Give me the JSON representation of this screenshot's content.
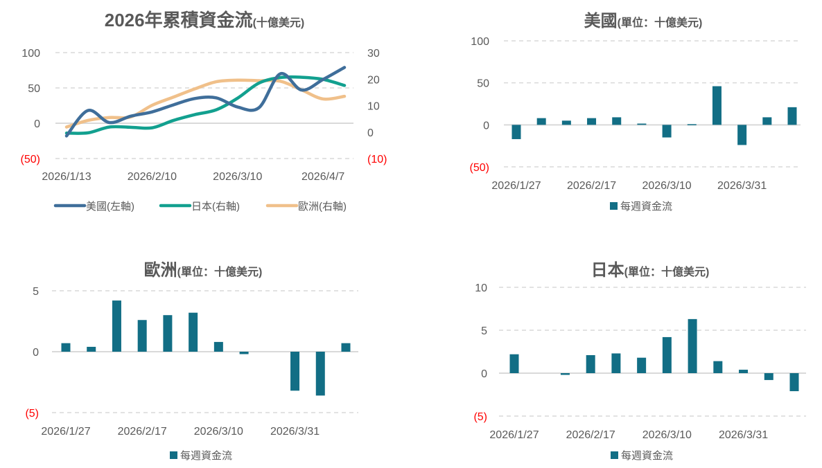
{
  "colors": {
    "us": "#3f6e9a",
    "japan": "#12a08f",
    "europe": "#f0c08a",
    "bar": "#126e85",
    "grid": "#d9d9d9",
    "text": "#595959",
    "negative": "#ff0000"
  },
  "chart_data": [
    {
      "type": "line",
      "title_main": "2026年累積資金流",
      "title_unit": "(十億美元)",
      "x": [
        "2026/1/13",
        "2026/1/20",
        "2026/1/27",
        "2026/2/3",
        "2026/2/10",
        "2026/2/17",
        "2026/2/24",
        "2026/3/3",
        "2026/3/10",
        "2026/3/17",
        "2026/3/24",
        "2026/3/31",
        "2026/4/7",
        "2026/4/14"
      ],
      "x_tick_labels": [
        "2026/1/13",
        "2026/2/10",
        "2026/3/10",
        "2026/4/7"
      ],
      "y_left": {
        "ylim": [
          -50,
          100
        ],
        "ticks": [
          "(50)",
          "0",
          "50",
          "100"
        ]
      },
      "y_right": {
        "ylim": [
          -10,
          30
        ],
        "ticks": [
          "(10)",
          "0",
          "10",
          "20",
          "30"
        ]
      },
      "series": [
        {
          "name": "美國(左軸)",
          "axis": "left",
          "values": [
            -18,
            18,
            1,
            10,
            16,
            26,
            35,
            36,
            23,
            22,
            70,
            47,
            62,
            79
          ]
        },
        {
          "name": "日本(右軸)",
          "axis": "right",
          "values": [
            -0.4,
            -0.3,
            1.9,
            1.8,
            1.6,
            4.4,
            6.6,
            8.4,
            12.8,
            18.5,
            20.6,
            20.7,
            19.9,
            17.6
          ]
        },
        {
          "name": "歐洲(右軸)",
          "axis": "right",
          "values": [
            1.9,
            4.4,
            5.5,
            5.7,
            10.1,
            13.2,
            16.3,
            19.0,
            19.6,
            19.4,
            19.2,
            15.9,
            12.5,
            13.5
          ]
        }
      ],
      "grid": true,
      "legend": "bottom"
    },
    {
      "type": "bar",
      "title_main": "美國",
      "title_unit": "(單位：十億美元)",
      "categories": [
        "2026/1/27",
        "2026/2/3",
        "2026/2/10",
        "2026/2/17",
        "2026/2/24",
        "2026/3/3",
        "2026/3/10",
        "2026/3/17",
        "2026/3/24",
        "2026/3/31",
        "2026/4/7",
        "2026/4/14"
      ],
      "x_tick_labels": [
        "2026/1/27",
        "2026/2/17",
        "2026/3/10",
        "2026/3/31"
      ],
      "values": [
        -17,
        8,
        5,
        8,
        9,
        1.5,
        -15,
        0.8,
        46,
        -24,
        9,
        21
      ],
      "ylim": [
        -50,
        100
      ],
      "ticks": [
        "(50)",
        "0",
        "50",
        "100"
      ],
      "legend_label": "每週資金流",
      "grid": true,
      "legend": "bottom"
    },
    {
      "type": "bar",
      "title_main": "歐洲",
      "title_unit": "(單位：十億美元)",
      "categories": [
        "2026/1/27",
        "2026/2/3",
        "2026/2/10",
        "2026/2/17",
        "2026/2/24",
        "2026/3/3",
        "2026/3/10",
        "2026/3/17",
        "2026/3/24",
        "2026/3/31",
        "2026/4/7",
        "2026/4/14"
      ],
      "x_tick_labels": [
        "2026/1/27",
        "2026/2/17",
        "2026/3/10",
        "2026/3/31"
      ],
      "values": [
        0.7,
        0.4,
        4.2,
        2.6,
        3.0,
        3.2,
        0.8,
        -0.2,
        0,
        -3.2,
        -3.6,
        0.7
      ],
      "ylim": [
        -5,
        5
      ],
      "ticks": [
        "(5)",
        "0",
        "5"
      ],
      "legend_label": "每週資金流",
      "grid": true,
      "legend": "bottom"
    },
    {
      "type": "bar",
      "title_main": "日本",
      "title_unit": "(單位：十億美元)",
      "categories": [
        "2026/1/27",
        "2026/2/3",
        "2026/2/10",
        "2026/2/17",
        "2026/2/24",
        "2026/3/3",
        "2026/3/10",
        "2026/3/17",
        "2026/3/24",
        "2026/3/31",
        "2026/4/7",
        "2026/4/14"
      ],
      "x_tick_labels": [
        "2026/1/27",
        "2026/2/17",
        "2026/3/10",
        "2026/3/31"
      ],
      "values": [
        2.2,
        0,
        -0.2,
        2.1,
        2.3,
        1.8,
        4.2,
        6.3,
        1.4,
        0.4,
        -0.8,
        -2.1
      ],
      "ylim": [
        -5,
        10
      ],
      "ticks": [
        "(5)",
        "0",
        "5",
        "10"
      ],
      "legend_label": "每週資金流",
      "grid": true,
      "legend": "bottom"
    }
  ]
}
